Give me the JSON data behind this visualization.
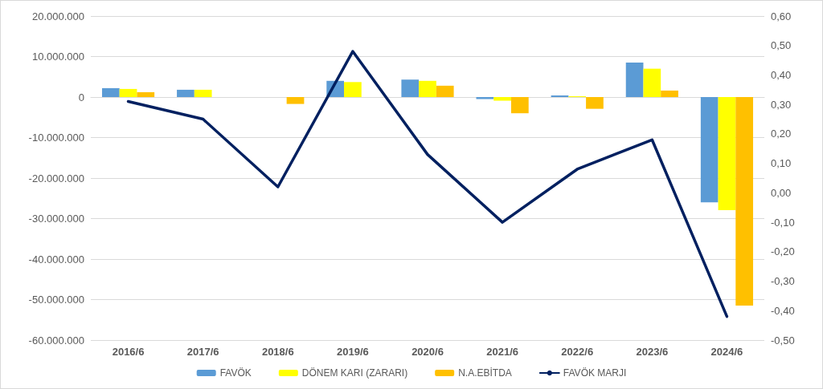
{
  "chart_data": {
    "type": "bar",
    "categories": [
      "2016/6",
      "2017/6",
      "2018/6",
      "2019/6",
      "2020/6",
      "2021/6",
      "2022/6",
      "2023/6",
      "2024/6"
    ],
    "series": [
      {
        "name": "FAVÖK",
        "color": "#5b9bd5",
        "values": [
          2200000,
          1800000,
          0,
          4000000,
          4300000,
          -500000,
          400000,
          8500000,
          -26000000
        ]
      },
      {
        "name": "DÖNEM KARI (ZARARI)",
        "color": "#ffff00",
        "values": [
          2000000,
          1800000,
          0,
          3700000,
          4000000,
          -900000,
          200000,
          7000000,
          -27900000
        ]
      },
      {
        "name": "N.A.EBİTDA",
        "color": "#ffc000",
        "values": [
          1200000,
          0,
          -1700000,
          0,
          2800000,
          -4000000,
          -2900000,
          1600000,
          -51500000
        ]
      },
      {
        "name": "FAVÖK MARJI",
        "type": "line",
        "axis": "y2",
        "color": "#002060",
        "values": [
          0.31,
          0.25,
          0.02,
          0.48,
          0.13,
          -0.1,
          0.08,
          0.18,
          -0.42
        ]
      }
    ],
    "ylim": [
      -60000000,
      20000000
    ],
    "yticks": [
      {
        "value": -60000000,
        "label": "-60.000.000"
      },
      {
        "value": -50000000,
        "label": "-50.000.000"
      },
      {
        "value": -40000000,
        "label": "-40.000.000"
      },
      {
        "value": -30000000,
        "label": "-30.000.000"
      },
      {
        "value": -20000000,
        "label": "-20.000.000"
      },
      {
        "value": -10000000,
        "label": "-10.000.000"
      },
      {
        "value": 0,
        "label": "0"
      },
      {
        "value": 10000000,
        "label": "10.000.000"
      },
      {
        "value": 20000000,
        "label": "20.000.000"
      }
    ],
    "y2lim": [
      -0.5,
      0.6
    ],
    "y2ticks": [
      {
        "value": -0.5,
        "label": "-0,50"
      },
      {
        "value": -0.4,
        "label": "-0,40"
      },
      {
        "value": -0.3,
        "label": "-0,30"
      },
      {
        "value": -0.2,
        "label": "-0,20"
      },
      {
        "value": -0.1,
        "label": "-0,10"
      },
      {
        "value": 0,
        "label": "0,00"
      },
      {
        "value": 0.1,
        "label": "0,10"
      },
      {
        "value": 0.2,
        "label": "0,20"
      },
      {
        "value": 0.3,
        "label": "0,30"
      },
      {
        "value": 0.4,
        "label": "0,40"
      },
      {
        "value": 0.5,
        "label": "0,50"
      },
      {
        "value": 0.6,
        "label": "0,60"
      }
    ],
    "grid": "y",
    "legend": "bottom",
    "marker": "none",
    "line_style": "solid"
  }
}
